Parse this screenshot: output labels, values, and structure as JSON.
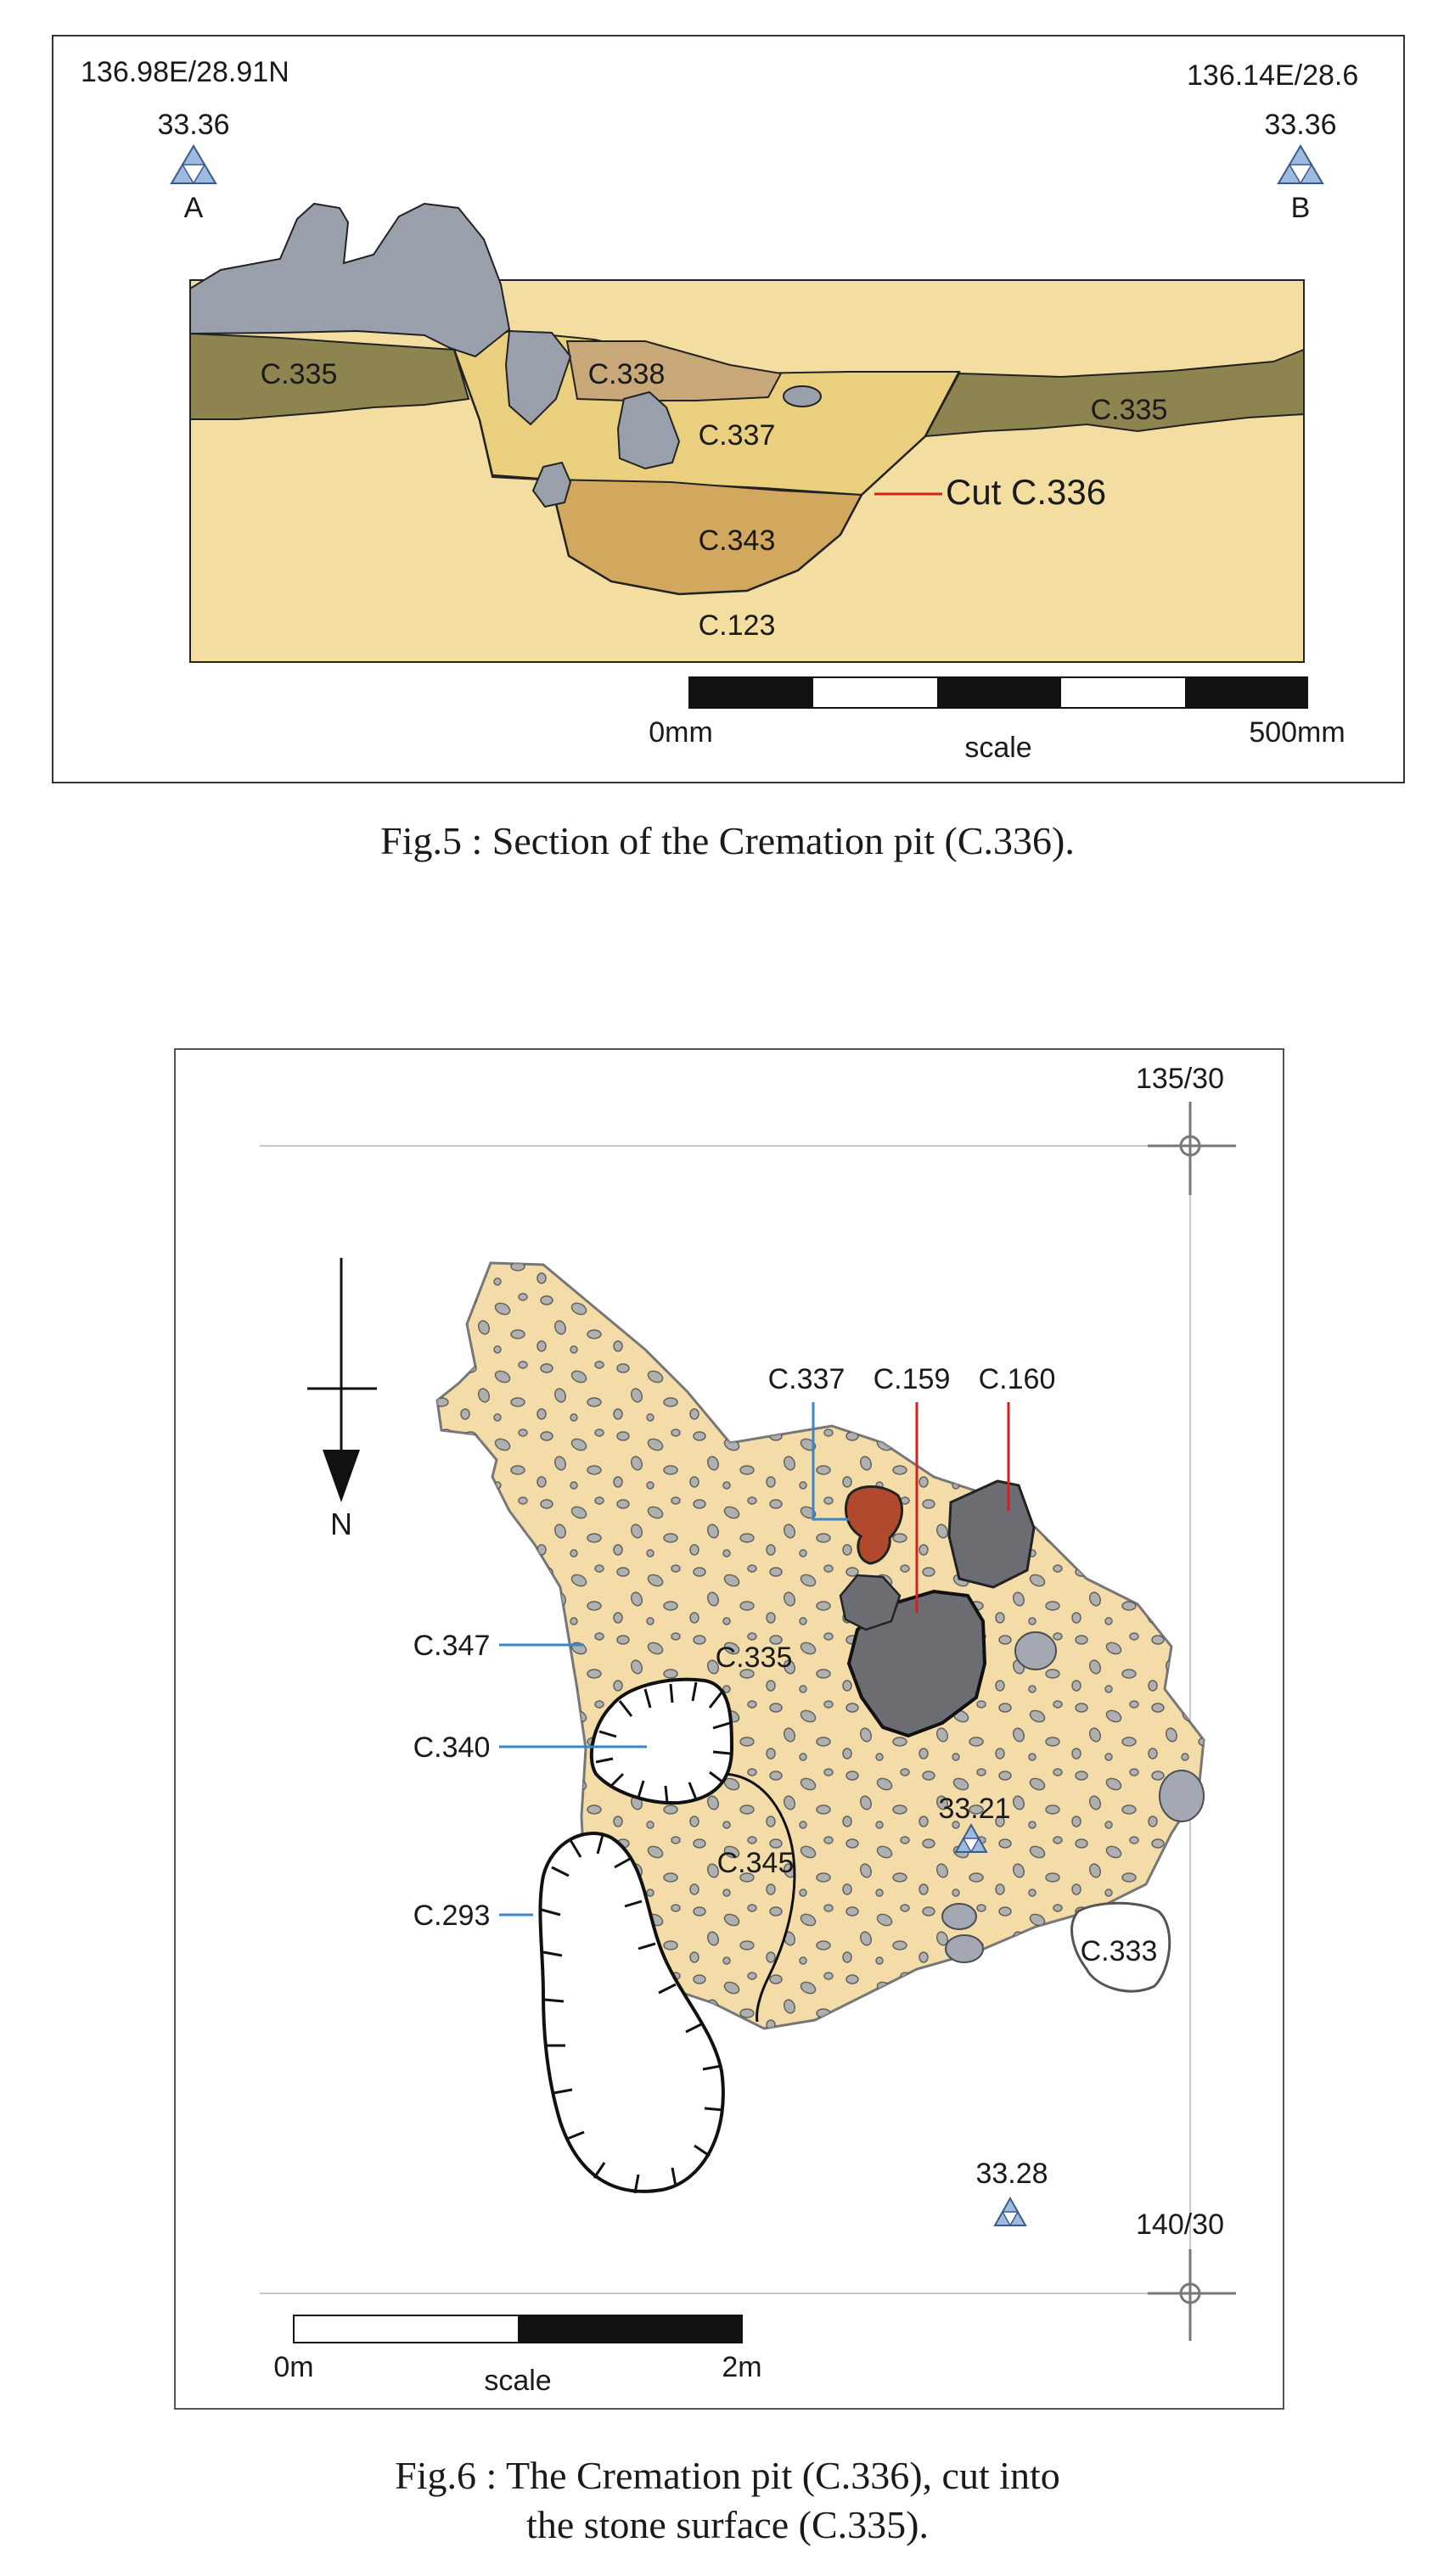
{
  "fig5": {
    "coord_left": "136.98E/28.91N",
    "coord_right": "136.14E/28.6",
    "datum_left_value": "33.36",
    "datum_right_value": "33.36",
    "point_a": "A",
    "point_b": "B",
    "contexts": {
      "c335_left": "C.335",
      "c335_right": "C.335",
      "c338": "C.338",
      "c337": "C.337",
      "c343": "C.343",
      "c123": "C.123"
    },
    "cut_label": "Cut C.336",
    "scale_start": "0mm",
    "scale_end": "500mm",
    "scale_label": "scale",
    "caption": "Fig.5 : Section of the Cremation pit (C.336)."
  },
  "fig6": {
    "grid_top": "135/30",
    "grid_bottom": "140/30",
    "north_label": "N",
    "contexts": {
      "c337": "C.337",
      "c159": "C.159",
      "c160": "C.160",
      "c347": "C.347",
      "c335": "C.335",
      "c340": "C.340",
      "c345": "C.345",
      "c293": "C.293",
      "c333": "C.333"
    },
    "level_inside": "33.21",
    "level_outside": "33.28",
    "scale_start": "0m",
    "scale_end": "2m",
    "scale_label": "scale",
    "caption_line1": "Fig.6 : The Cremation pit (C.336), cut into",
    "caption_line2": "the stone surface (C.335)."
  },
  "colors": {
    "natural_c123": "#f3dda0",
    "topsoil_c335": "#8d8450",
    "fill_c337": "#ead07e",
    "fill_c338": "#c8a878",
    "fill_c343": "#d2a85e",
    "stone": "#9aa0ab",
    "plan_surface": "#f3dca8",
    "burnt_c159": "#b14a2c",
    "dark_stone": "#6b6d73",
    "cut_line_red": "#d22020",
    "leader_blue": "#3a86c8",
    "datum_blue": "#9dbbe0"
  }
}
